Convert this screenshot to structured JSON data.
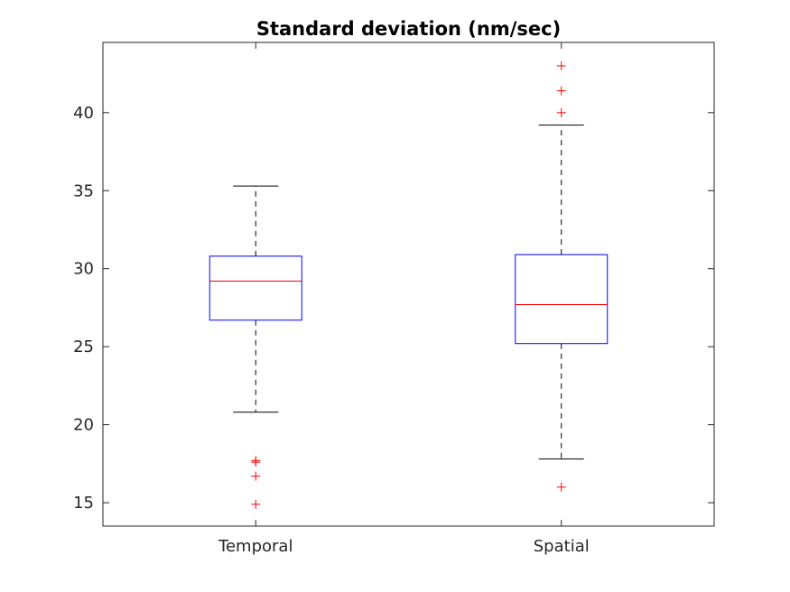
{
  "chart_data": {
    "type": "boxplot",
    "title": "Standard deviation (nm/sec)",
    "xlabel": "",
    "ylabel": "",
    "ylim": [
      13.5,
      44.5
    ],
    "yticks": [
      15,
      20,
      25,
      30,
      35,
      40
    ],
    "grid": false,
    "categories": [
      "Temporal",
      "Spatial"
    ],
    "boxes": [
      {
        "category": "Temporal",
        "whisker_low": 20.8,
        "q1": 26.7,
        "median": 29.2,
        "q3": 30.8,
        "whisker_high": 35.3,
        "outliers": [
          17.7,
          17.6,
          16.7,
          14.9
        ]
      },
      {
        "category": "Spatial",
        "whisker_low": 17.8,
        "q1": 25.2,
        "median": 27.7,
        "q3": 30.9,
        "whisker_high": 39.2,
        "outliers": [
          43.0,
          41.4,
          40.0,
          16.0
        ]
      }
    ],
    "colors": {
      "box": "#0000ff",
      "median": "#ff0000",
      "whisker": "#000000",
      "outlier": "#ff0000",
      "axes": "#262626"
    }
  }
}
